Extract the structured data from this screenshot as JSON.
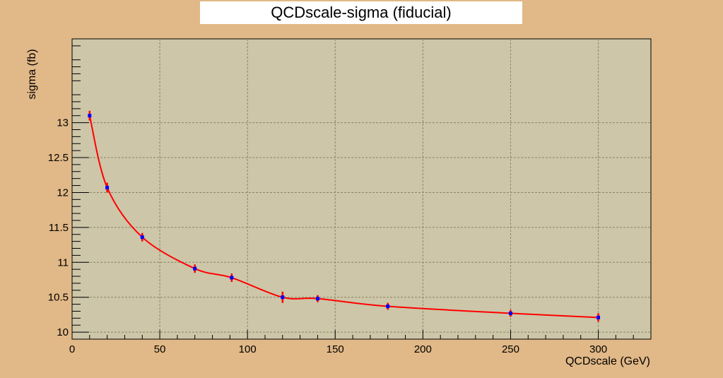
{
  "chart_data": {
    "type": "line",
    "title": "QCDscale-sigma (fiducial)",
    "xlabel": "QCDscale (GeV)",
    "ylabel": "sigma (fb)",
    "xlim": [
      0,
      330
    ],
    "ylim": [
      9.9,
      14.2
    ],
    "x_ticks": [
      0,
      50,
      100,
      150,
      200,
      250,
      300
    ],
    "y_ticks": [
      10,
      10.5,
      11,
      11.5,
      12,
      12.5,
      13
    ],
    "x_tick_labels": [
      "0",
      "50",
      "100",
      "150",
      "200",
      "250",
      "300"
    ],
    "y_tick_labels": [
      "10",
      "10.5",
      "11",
      "11.5",
      "12",
      "12.5",
      "13"
    ],
    "grid": true,
    "colors": {
      "background": "#e1b887",
      "plot_area": "#cdc6a9",
      "grid": "#8c8668",
      "curve": "#ff0000",
      "marker": "#0000ff",
      "error_bar": "#ff0000"
    },
    "series": [
      {
        "x": [
          10,
          20,
          40,
          70,
          91,
          120,
          140,
          180,
          250,
          300
        ],
        "y": [
          13.1,
          12.07,
          11.36,
          10.91,
          10.78,
          10.5,
          10.48,
          10.37,
          10.27,
          10.21
        ],
        "yerr": [
          0.07,
          0.07,
          0.06,
          0.06,
          0.06,
          0.08,
          0.05,
          0.05,
          0.05,
          0.06
        ]
      }
    ]
  }
}
